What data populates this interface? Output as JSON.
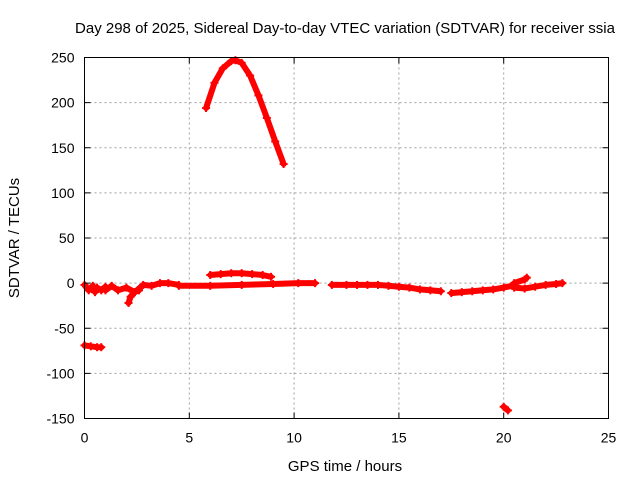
{
  "chart_data": {
    "type": "line",
    "title": "Day 298 of 2025, Sidereal Day-to-day VTEC variation (SDTVAR) for receiver ssia",
    "xlabel": "GPS time / hours",
    "ylabel": "SDTVAR / TECUs",
    "xlim": [
      0,
      25
    ],
    "ylim": [
      -150,
      250
    ],
    "xticks": [
      0,
      5,
      10,
      15,
      20,
      25
    ],
    "yticks": [
      -150,
      -100,
      -50,
      0,
      50,
      100,
      150,
      200,
      250
    ],
    "xtick_labels": [
      "0",
      "5",
      "10",
      "15",
      "20",
      "25"
    ],
    "ytick_labels": [
      "-150",
      "-100",
      "-50",
      "0",
      "50",
      "100",
      "150",
      "200",
      "250"
    ],
    "grid": true,
    "color": "#ff0000",
    "series": [
      {
        "x": [
          5.8,
          6.2,
          6.6,
          7.0,
          7.2,
          7.5,
          7.9,
          8.3,
          8.7,
          9.1,
          9.5
        ],
        "y": [
          194,
          222,
          238,
          246,
          247,
          244,
          230,
          208,
          183,
          157,
          132
        ]
      },
      {
        "x": [
          6.0,
          6.5,
          7.0,
          7.5,
          8.0,
          8.5,
          8.9
        ],
        "y": [
          9,
          10,
          11,
          11,
          10,
          9,
          7
        ]
      },
      {
        "x": [
          4.5,
          6.0,
          7.5,
          9.0,
          10.2,
          11.0
        ],
        "y": [
          -3,
          -3,
          -2,
          -1,
          0,
          0
        ]
      },
      {
        "x": [
          0.0,
          0.2,
          0.4,
          0.5,
          0.6,
          0.8,
          1.0
        ],
        "y": [
          -2,
          -8,
          -3,
          -10,
          -5,
          -8,
          -4
        ]
      },
      {
        "x": [
          1.0,
          1.3,
          1.6,
          2.0,
          2.4,
          2.8,
          3.2,
          3.6,
          4.0,
          4.5
        ],
        "y": [
          -8,
          -3,
          -8,
          -5,
          -10,
          -2,
          -3,
          0,
          0,
          -2
        ]
      },
      {
        "x": [
          2.1,
          2.2,
          2.4,
          2.6
        ],
        "y": [
          -22,
          -15,
          -10,
          -8
        ]
      },
      {
        "x": [
          11.8,
          12.5,
          13.0,
          13.5,
          14.0,
          14.5,
          15.0,
          15.5,
          16.0,
          16.5,
          17.0
        ],
        "y": [
          -2,
          -2,
          -2,
          -2,
          -2,
          -3,
          -4,
          -5,
          -7,
          -8,
          -9
        ]
      },
      {
        "x": [
          17.5,
          18.0,
          18.5,
          19.0,
          19.5,
          20.0,
          20.4
        ],
        "y": [
          -11,
          -10,
          -9,
          -8,
          -7,
          -5,
          -3
        ]
      },
      {
        "x": [
          20.5,
          21.0,
          21.5,
          22.0,
          22.5,
          22.8
        ],
        "y": [
          -5,
          -6,
          -4,
          -2,
          -1,
          0
        ]
      },
      {
        "x": [
          20.5,
          21.0,
          21.1
        ],
        "y": [
          0,
          4,
          6
        ]
      },
      {
        "x": [
          0.0,
          0.3,
          0.6,
          0.8
        ],
        "y": [
          -69,
          -70,
          -71,
          -71
        ]
      },
      {
        "x": [
          20.0,
          20.2
        ],
        "y": [
          -137,
          -141
        ]
      }
    ]
  }
}
